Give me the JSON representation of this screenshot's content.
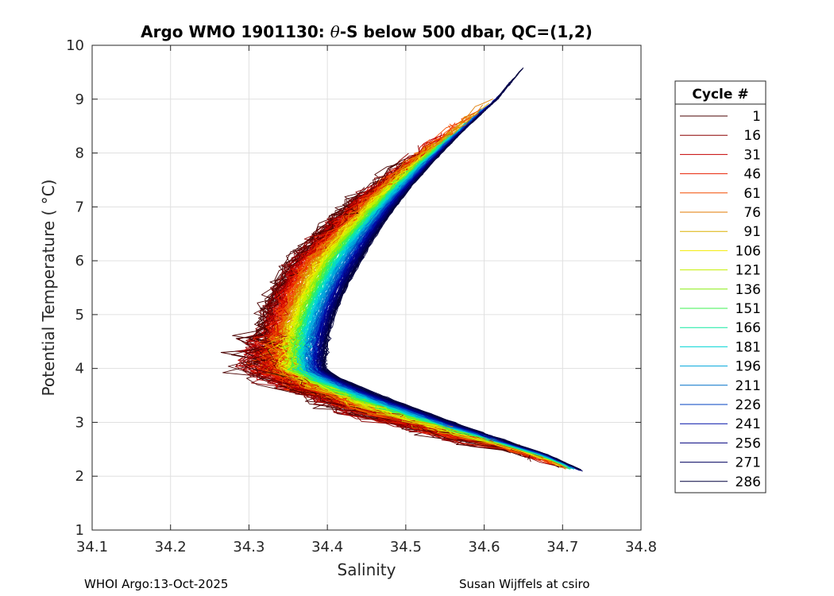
{
  "chart_data": {
    "type": "line",
    "title": "Argo WMO 1901130: θ-S below 500 dbar,  QC=(1,2)",
    "title_prefix": "Argo WMO 1901130: ",
    "title_theta": "θ",
    "title_suffix": "-S below 500 dbar,  QC=(1,2)",
    "xlabel": "Salinity",
    "ylabel": "Potential Temperature ( °C)",
    "xlim": [
      34.1,
      34.8
    ],
    "ylim": [
      1,
      10
    ],
    "xticks": [
      "34.1",
      "34.2",
      "34.3",
      "34.4",
      "34.5",
      "34.6",
      "34.7",
      "34.8"
    ],
    "yticks": [
      "1",
      "2",
      "3",
      "4",
      "5",
      "6",
      "7",
      "8",
      "9",
      "10"
    ],
    "grid": true,
    "legend_title": "Cycle #",
    "legend_position": "right",
    "series": [
      {
        "name": "1",
        "color": "#4a0000"
      },
      {
        "name": "16",
        "color": "#8c0000"
      },
      {
        "name": "31",
        "color": "#c40000"
      },
      {
        "name": "46",
        "color": "#e82000"
      },
      {
        "name": "61",
        "color": "#f24a00"
      },
      {
        "name": "76",
        "color": "#e07a00"
      },
      {
        "name": "91",
        "color": "#dcb000"
      },
      {
        "name": "106",
        "color": "#f2ec00"
      },
      {
        "name": "121",
        "color": "#c4f000"
      },
      {
        "name": "136",
        "color": "#88ee10"
      },
      {
        "name": "151",
        "color": "#3cf050"
      },
      {
        "name": "166",
        "color": "#10e8a0"
      },
      {
        "name": "181",
        "color": "#00d4d4"
      },
      {
        "name": "196",
        "color": "#00a6dc"
      },
      {
        "name": "211",
        "color": "#0070c8"
      },
      {
        "name": "226",
        "color": "#0040c0"
      },
      {
        "name": "241",
        "color": "#0010a8"
      },
      {
        "name": "256",
        "color": "#00007e"
      },
      {
        "name": "271",
        "color": "#00005e"
      },
      {
        "name": "286",
        "color": "#00003e"
      }
    ]
  },
  "footer": {
    "left": "WHOI Argo:13-Oct-2025",
    "right": "Susan Wijffels at csiro"
  }
}
